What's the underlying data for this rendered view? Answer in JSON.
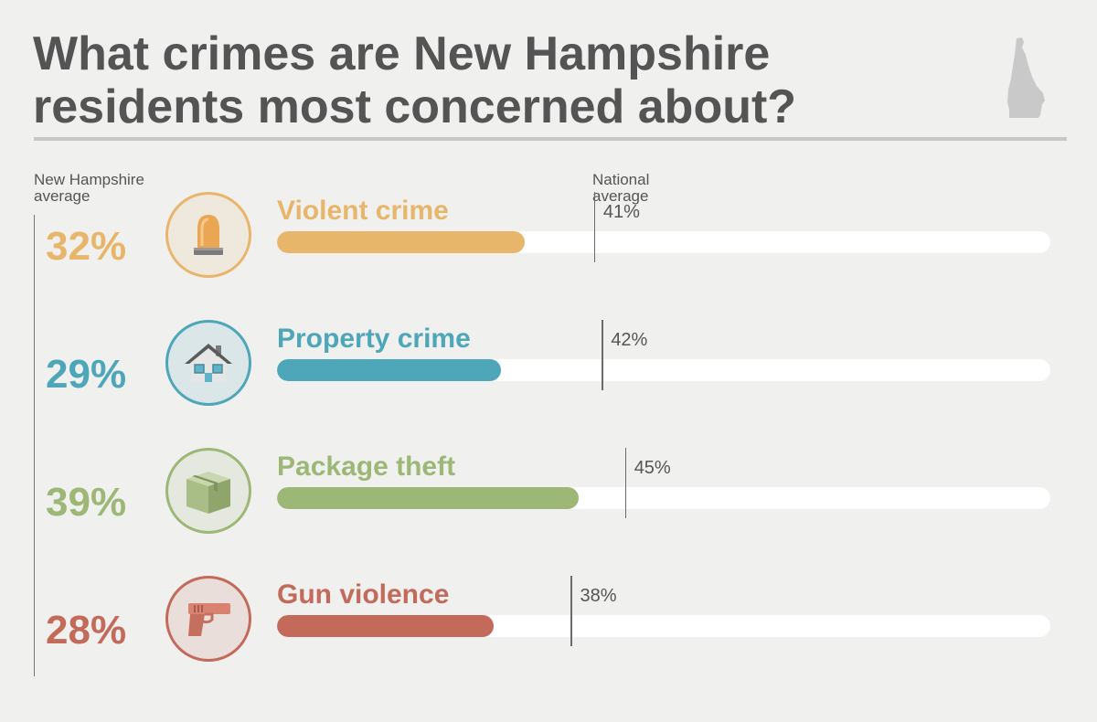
{
  "title": {
    "line1": "What crimes are New Hampshire",
    "line2_pre": "residents ",
    "line2_bold": "most concerned",
    "line2_post": " about?"
  },
  "left_header": [
    "New Hampshire",
    "average"
  ],
  "national_header": [
    "National",
    "average"
  ],
  "colors": {
    "background": "#f0f0ef",
    "violent": "#e8b66b",
    "property": "#4ea6b9",
    "package": "#9db776",
    "gun": "#c36a5b"
  },
  "chart_data": {
    "type": "bar",
    "orientation": "horizontal",
    "xlim": [
      0,
      100
    ],
    "categories": [
      "Violent crime",
      "Property crime",
      "Package theft",
      "Gun violence"
    ],
    "series": [
      {
        "name": "New Hampshire average",
        "values": [
          32,
          29,
          39,
          28
        ]
      },
      {
        "name": "National average",
        "values": [
          41,
          42,
          45,
          38
        ]
      }
    ],
    "value_labels": {
      "state": [
        "32%",
        "29%",
        "39%",
        "28%"
      ],
      "national": [
        "41%",
        "42%",
        "45%",
        "38%"
      ]
    },
    "icons": [
      "siren-icon",
      "house-icon",
      "package-icon",
      "gun-icon"
    ]
  }
}
